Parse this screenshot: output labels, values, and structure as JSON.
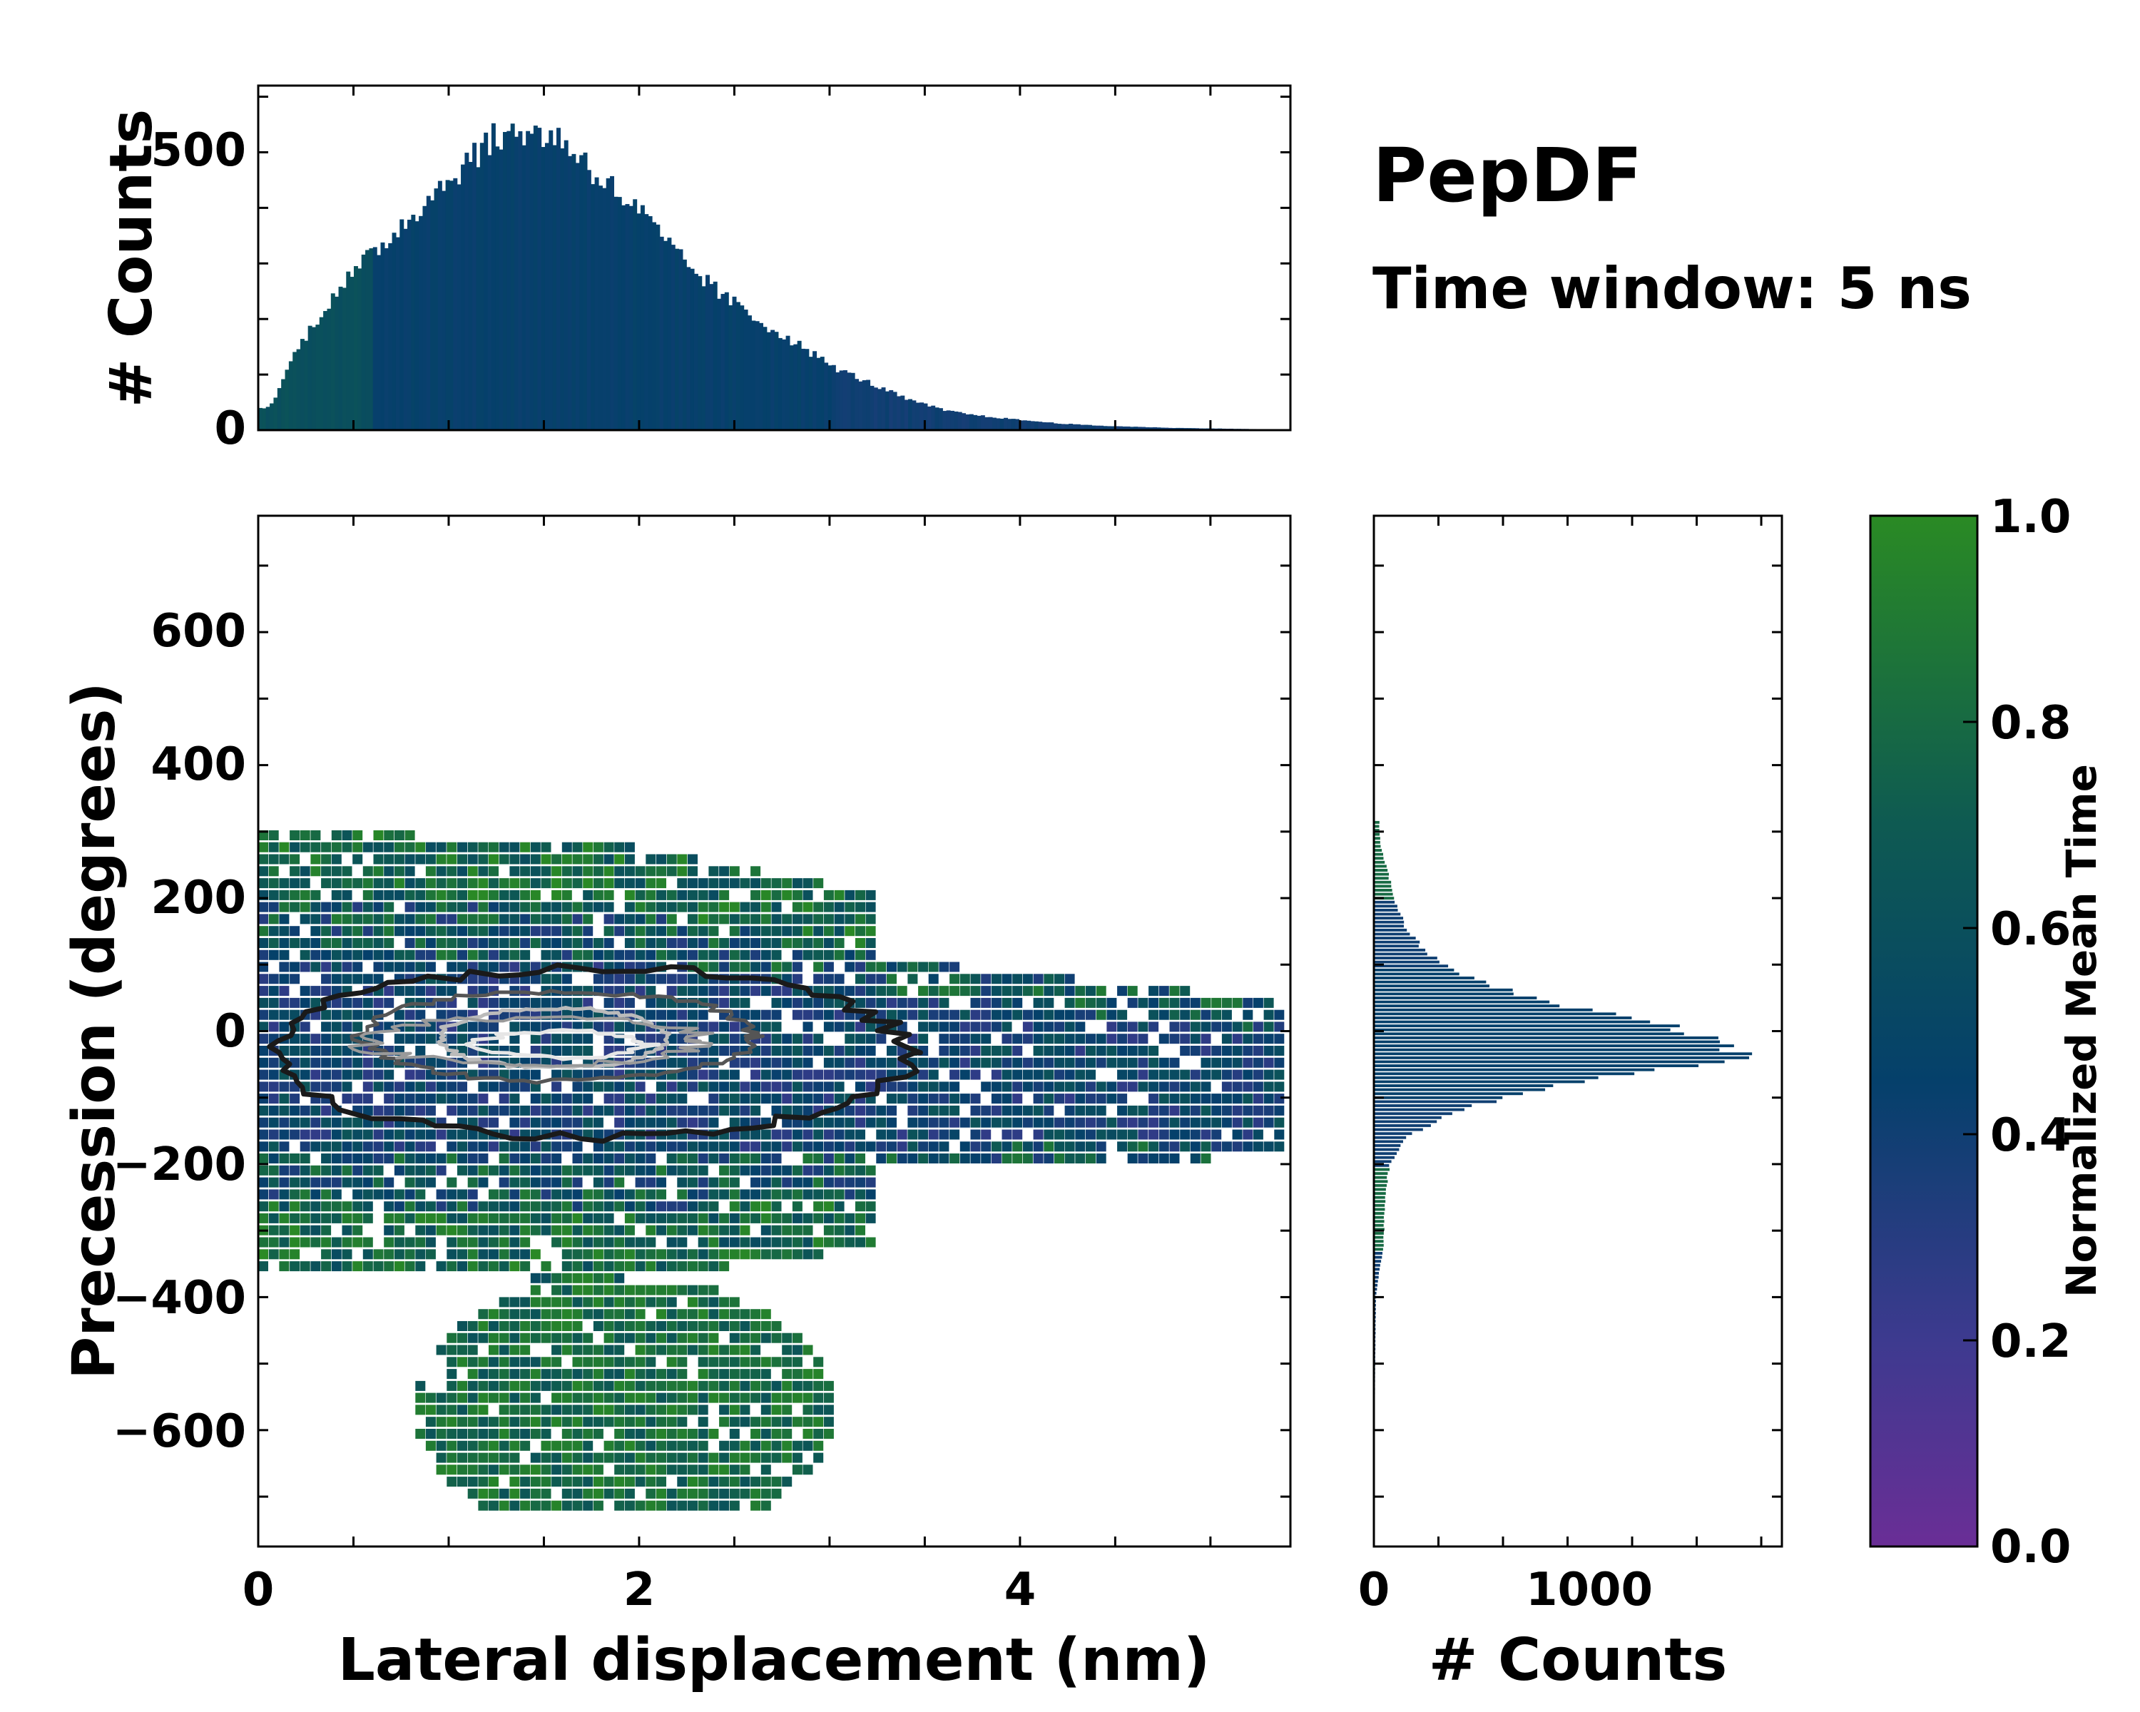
{
  "title": "PepDF",
  "subtitle": "Time window: 5 ns",
  "colors": {
    "cmap_low": "#6a2e96",
    "cmap_mid": "#05406b",
    "cmap_high": "#2a8a24",
    "frame": "#000000"
  },
  "chart_data": [
    {
      "name": "main-heatmap",
      "type": "heatmap",
      "xlabel": "Lateral displacement (nm)",
      "ylabel": "Precession (degrees)",
      "xlim": [
        0,
        5.42
      ],
      "ylim": [
        -775,
        775
      ],
      "xticks": [
        "0",
        "2",
        "4"
      ],
      "xtick_values": [
        0,
        2,
        4
      ],
      "yticks": [
        "600",
        "400",
        "200",
        "0",
        "−200",
        "−400",
        "−600"
      ],
      "ytick_values": [
        600,
        400,
        200,
        0,
        -200,
        -400,
        -600
      ],
      "color_encodes": "Normalized Mean Time",
      "density_center": [
        1.5,
        -15
      ],
      "contours": [
        {
          "level": "outer",
          "x_range": [
            0.1,
            3.4
          ],
          "y_range": [
            -160,
            95
          ],
          "color": "#1a1a1a"
        },
        {
          "level": "mid",
          "x_range": [
            0.55,
            2.6
          ],
          "y_range": [
            -75,
            60
          ],
          "color": "#555555"
        },
        {
          "level": "inner",
          "x_range": [
            0.95,
            2.15
          ],
          "y_range": [
            -55,
            35
          ],
          "color": "#bbbbbb"
        }
      ]
    },
    {
      "name": "top-marginal",
      "type": "bar",
      "ylabel": "# Counts",
      "yticks": [
        "0",
        "500"
      ],
      "ytick_values": [
        0,
        500
      ],
      "ylim": [
        0,
        620
      ],
      "x": [
        0.05,
        0.2,
        0.4,
        0.6,
        0.8,
        1.0,
        1.2,
        1.4,
        1.6,
        1.8,
        2.0,
        2.2,
        2.4,
        2.6,
        2.8,
        3.0,
        3.2,
        3.4,
        3.6,
        3.8,
        4.0,
        4.2,
        4.4,
        4.6,
        4.8,
        5.0,
        5.2,
        5.4
      ],
      "values": [
        40,
        150,
        250,
        320,
        390,
        455,
        520,
        540,
        520,
        450,
        390,
        310,
        250,
        200,
        160,
        115,
        85,
        55,
        35,
        25,
        18,
        12,
        8,
        6,
        4,
        3,
        2,
        1
      ]
    },
    {
      "name": "right-marginal",
      "type": "bar",
      "orientation": "horizontal",
      "xlabel": "# Counts",
      "xticks": [
        "0",
        "1000"
      ],
      "xtick_values": [
        0,
        1000
      ],
      "xlim": [
        0,
        1580
      ],
      "y": [
        320,
        280,
        240,
        200,
        160,
        120,
        80,
        40,
        20,
        0,
        -20,
        -40,
        -60,
        -80,
        -120,
        -160,
        -200,
        -240,
        -280,
        -320,
        -360,
        -400,
        -500,
        -600
      ],
      "values": [
        20,
        25,
        55,
        80,
        120,
        200,
        380,
        720,
        1050,
        1200,
        1420,
        1420,
        1050,
        700,
        300,
        120,
        60,
        45,
        40,
        38,
        20,
        8,
        5,
        3
      ]
    },
    {
      "name": "colorbar",
      "type": "colorbar",
      "label": "Normalized Mean Time",
      "range": [
        0,
        1
      ],
      "ticks": [
        "1.0",
        "0.8",
        "0.6",
        "0.4",
        "0.2",
        "0.0"
      ],
      "tick_values": [
        1.0,
        0.8,
        0.6,
        0.4,
        0.2,
        0.0
      ]
    }
  ]
}
